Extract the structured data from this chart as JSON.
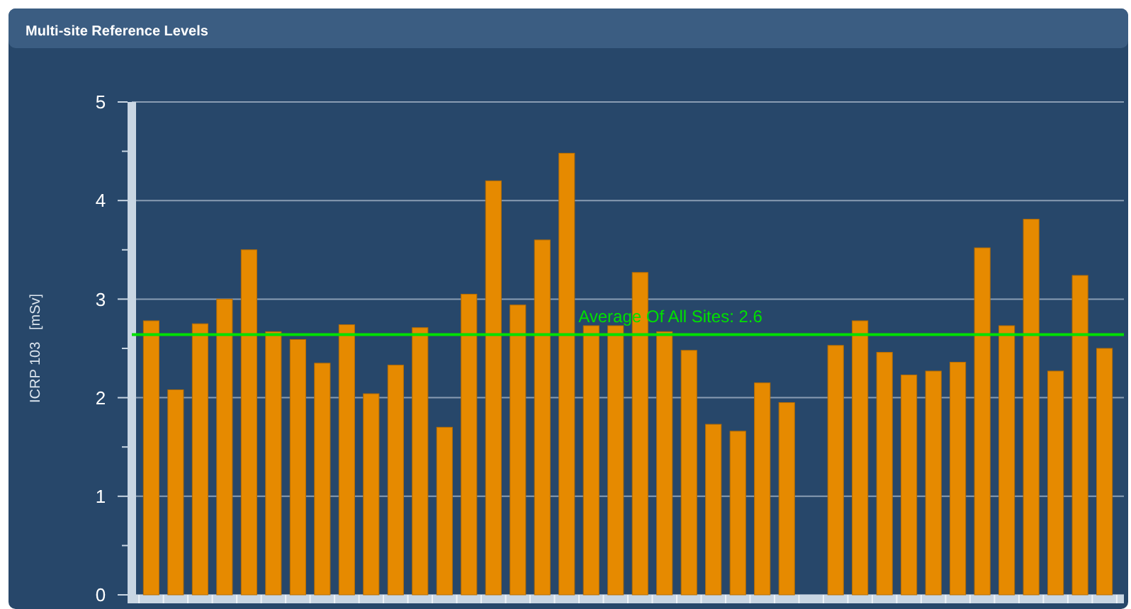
{
  "chart_data": {
    "type": "bar",
    "title": "Multi-site Reference Levels",
    "ylabel": "ICRP 103   [mSv]",
    "categories": [
      null,
      null,
      null,
      null,
      null,
      null,
      null,
      null,
      null,
      null,
      null,
      null,
      null,
      null,
      null,
      null,
      null,
      null,
      null,
      null,
      null,
      null,
      null,
      null,
      null,
      null,
      null,
      null,
      null,
      null,
      null,
      null,
      null,
      null,
      null,
      null,
      null,
      null,
      null,
      null
    ],
    "values": [
      2.78,
      2.08,
      2.75,
      3.0,
      3.5,
      2.67,
      2.59,
      2.35,
      2.74,
      2.04,
      2.33,
      2.71,
      1.7,
      3.05,
      4.2,
      2.94,
      3.6,
      4.48,
      2.73,
      2.73,
      3.27,
      2.67,
      2.48,
      1.73,
      1.66,
      2.15,
      1.95,
      null,
      2.53,
      2.78,
      2.46,
      2.23,
      2.27,
      2.36,
      3.52,
      2.73,
      3.81,
      2.27,
      3.24,
      2.5
    ],
    "color": "#e68a00",
    "ylim": [
      0,
      5
    ],
    "yticks": [
      0,
      {
        "value": 0.5,
        "label": null
      },
      1,
      {
        "value": 1.5,
        "label": null
      },
      2,
      {
        "value": 2.5,
        "label": null
      },
      3,
      {
        "value": 3.5,
        "label": null
      },
      4,
      {
        "value": 4.5,
        "label": null
      },
      5
    ],
    "grid": "y",
    "ref_lines": [
      {
        "axis": "y",
        "value": 2.64,
        "label": "Average Of All Sites: 2.6",
        "color": "#00e000"
      }
    ]
  }
}
